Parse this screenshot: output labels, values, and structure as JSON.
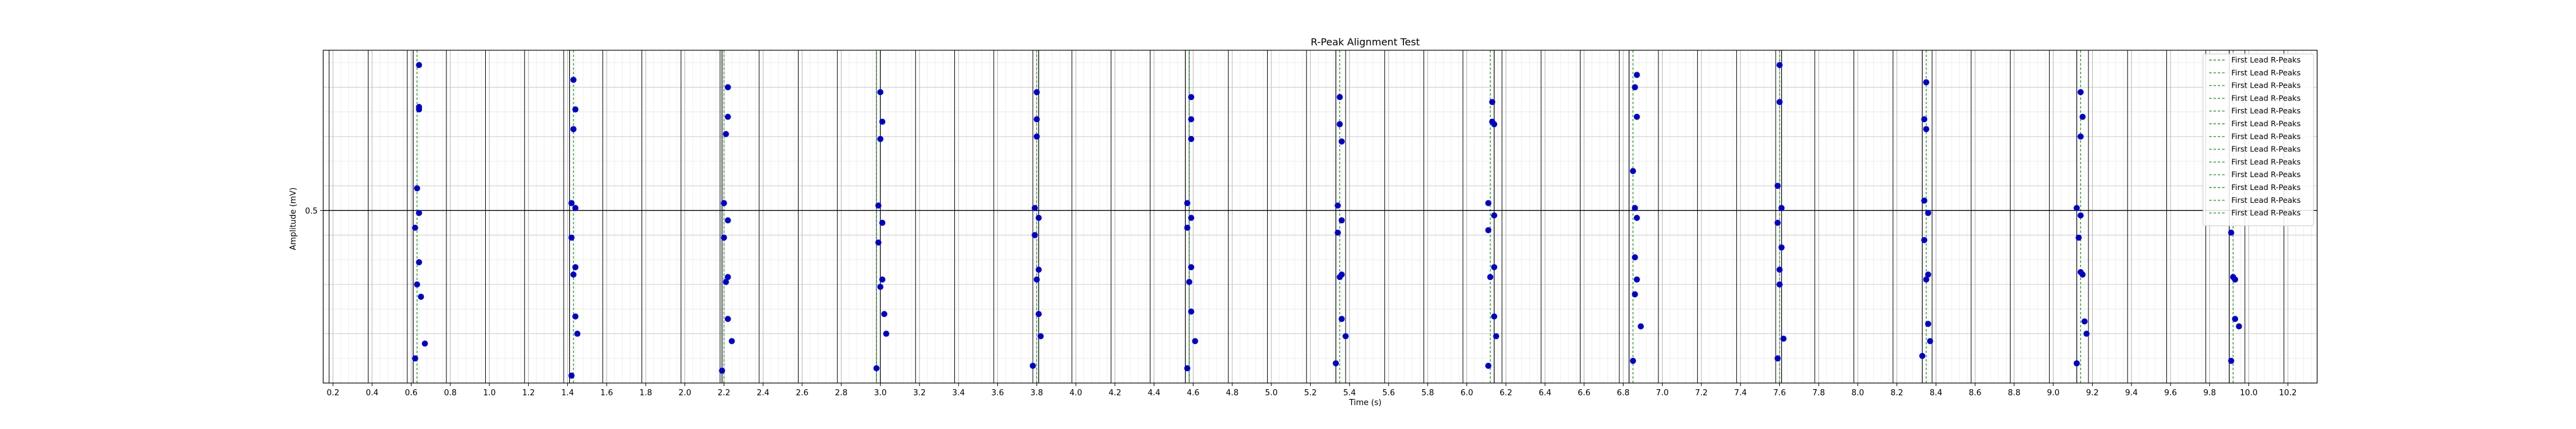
{
  "chart_data": {
    "type": "scatter",
    "title": "R-Peak Alignment Test",
    "xlabel": "Time (s)",
    "ylabel": "Amplitude (mV)",
    "xlim": [
      0.15,
      10.35
    ],
    "ylim": [
      -0.2,
      1.15
    ],
    "grid": true,
    "minor_grid": true,
    "legend_placement": "top-right",
    "x_ticks": [
      0.2,
      0.4,
      0.6,
      0.8,
      1.0,
      1.2,
      1.4,
      1.6,
      1.8,
      2.0,
      2.2,
      2.4,
      2.6,
      2.8,
      3.0,
      3.2,
      3.4,
      3.6,
      3.8,
      4.0,
      4.2,
      4.4,
      4.6,
      4.8,
      5.0,
      5.2,
      5.4,
      5.6,
      5.8,
      6.0,
      6.2,
      6.4,
      6.6,
      6.8,
      7.0,
      7.2,
      7.4,
      7.6,
      7.8,
      8.0,
      8.2,
      8.4,
      8.6,
      8.8,
      9.0,
      9.2,
      9.4,
      9.6,
      9.8,
      10.0,
      10.2
    ],
    "x_tick_labels": [
      "0.2",
      "0.4",
      "0.6",
      "0.8",
      "1.0",
      "1.2",
      "1.4",
      "1.6",
      "1.8",
      "2.0",
      "2.2",
      "2.4",
      "2.6",
      "2.8",
      "3.0",
      "3.2",
      "3.4",
      "3.6",
      "3.8",
      "4.0",
      "4.2",
      "4.4",
      "4.6",
      "4.8",
      "5.0",
      "5.2",
      "5.4",
      "5.6",
      "5.8",
      "6.0",
      "6.2",
      "6.4",
      "6.6",
      "6.8",
      "7.0",
      "7.2",
      "7.4",
      "7.6",
      "7.8",
      "8.0",
      "8.2",
      "8.4",
      "8.6",
      "8.8",
      "9.0",
      "9.2",
      "9.4",
      "9.6",
      "9.8",
      "10.0",
      "10.2"
    ],
    "y_ticks": [
      0.5
    ],
    "y_tick_labels": [
      "0.5"
    ],
    "major_vlines": [
      0.18,
      0.38,
      0.58,
      0.78,
      0.98,
      1.18,
      1.38,
      1.58,
      1.78,
      1.98,
      2.18,
      2.38,
      2.58,
      2.78,
      2.98,
      3.18,
      3.38,
      3.58,
      3.78,
      3.98,
      4.18,
      4.38,
      4.58,
      4.78,
      4.98,
      5.18,
      5.38,
      5.58,
      5.78,
      5.98,
      6.18,
      6.38,
      6.58,
      6.78,
      6.98,
      7.18,
      7.38,
      7.58,
      7.78,
      7.98,
      8.18,
      8.38,
      8.58,
      8.78,
      8.98,
      9.18,
      9.38,
      9.58,
      9.78,
      9.98,
      10.18
    ],
    "baseline_y": 0.5,
    "r_peak_lines": {
      "label": "First Lead R-Peaks",
      "green": [
        0.63,
        1.43,
        2.2,
        2.98,
        3.8,
        4.58,
        5.35,
        6.12,
        6.85,
        7.6,
        8.35,
        9.14,
        9.92
      ],
      "black": [
        0.61,
        1.41,
        2.19,
        3.0,
        3.81,
        4.56,
        5.33,
        6.14,
        6.83,
        7.61,
        8.33,
        9.12,
        9.9
      ]
    },
    "legend_entries": [
      "First Lead R-Peaks",
      "First Lead R-Peaks",
      "First Lead R-Peaks",
      "First Lead R-Peaks",
      "First Lead R-Peaks",
      "First Lead R-Peaks",
      "First Lead R-Peaks",
      "First Lead R-Peaks",
      "First Lead R-Peaks",
      "First Lead R-Peaks",
      "First Lead R-Peaks",
      "First Lead R-Peaks",
      "First Lead R-Peaks"
    ],
    "series": [
      {
        "color": "#0000cc",
        "points": [
          [
            0.64,
            1.09
          ],
          [
            0.64,
            0.92
          ],
          [
            0.64,
            0.91
          ],
          [
            0.63,
            0.59
          ],
          [
            0.64,
            0.49
          ],
          [
            0.62,
            0.43
          ],
          [
            0.64,
            0.29
          ],
          [
            0.63,
            0.2
          ],
          [
            0.65,
            0.15
          ],
          [
            0.67,
            -0.04
          ],
          [
            0.62,
            -0.1
          ],
          [
            1.43,
            1.03
          ],
          [
            1.44,
            0.91
          ],
          [
            1.43,
            0.83
          ],
          [
            1.42,
            0.53
          ],
          [
            1.44,
            0.51
          ],
          [
            1.42,
            0.39
          ],
          [
            1.44,
            0.27
          ],
          [
            1.43,
            0.24
          ],
          [
            1.44,
            0.07
          ],
          [
            1.45,
            0.0
          ],
          [
            1.42,
            -0.17
          ],
          [
            2.22,
            1.0
          ],
          [
            2.22,
            0.88
          ],
          [
            2.21,
            0.81
          ],
          [
            2.2,
            0.53
          ],
          [
            2.22,
            0.46
          ],
          [
            2.2,
            0.39
          ],
          [
            2.22,
            0.23
          ],
          [
            2.21,
            0.21
          ],
          [
            2.22,
            0.06
          ],
          [
            2.24,
            -0.03
          ],
          [
            2.19,
            -0.15
          ],
          [
            3.0,
            0.98
          ],
          [
            3.01,
            0.86
          ],
          [
            3.0,
            0.79
          ],
          [
            2.99,
            0.52
          ],
          [
            3.01,
            0.45
          ],
          [
            2.99,
            0.37
          ],
          [
            3.01,
            0.22
          ],
          [
            3.0,
            0.19
          ],
          [
            3.02,
            0.08
          ],
          [
            3.03,
            0.0
          ],
          [
            2.98,
            -0.14
          ],
          [
            3.8,
            0.98
          ],
          [
            3.8,
            0.87
          ],
          [
            3.8,
            0.8
          ],
          [
            3.79,
            0.51
          ],
          [
            3.81,
            0.47
          ],
          [
            3.79,
            0.4
          ],
          [
            3.81,
            0.26
          ],
          [
            3.8,
            0.22
          ],
          [
            3.81,
            0.08
          ],
          [
            3.82,
            -0.01
          ],
          [
            3.78,
            -0.13
          ],
          [
            4.59,
            0.96
          ],
          [
            4.59,
            0.87
          ],
          [
            4.59,
            0.79
          ],
          [
            4.57,
            0.53
          ],
          [
            4.59,
            0.47
          ],
          [
            4.57,
            0.43
          ],
          [
            4.59,
            0.27
          ],
          [
            4.58,
            0.21
          ],
          [
            4.59,
            0.09
          ],
          [
            4.61,
            -0.03
          ],
          [
            4.57,
            -0.14
          ],
          [
            5.35,
            0.96
          ],
          [
            5.35,
            0.85
          ],
          [
            5.36,
            0.78
          ],
          [
            5.34,
            0.52
          ],
          [
            5.36,
            0.46
          ],
          [
            5.34,
            0.41
          ],
          [
            5.36,
            0.24
          ],
          [
            5.35,
            0.23
          ],
          [
            5.36,
            0.06
          ],
          [
            5.38,
            -0.01
          ],
          [
            5.33,
            -0.12
          ],
          [
            6.13,
            0.94
          ],
          [
            6.13,
            0.86
          ],
          [
            6.14,
            0.85
          ],
          [
            6.11,
            0.53
          ],
          [
            6.14,
            0.48
          ],
          [
            6.11,
            0.42
          ],
          [
            6.14,
            0.27
          ],
          [
            6.12,
            0.23
          ],
          [
            6.14,
            0.07
          ],
          [
            6.15,
            -0.01
          ],
          [
            6.11,
            -0.13
          ],
          [
            6.87,
            1.05
          ],
          [
            6.86,
            1.0
          ],
          [
            6.87,
            0.88
          ],
          [
            6.85,
            0.66
          ],
          [
            6.86,
            0.51
          ],
          [
            6.87,
            0.47
          ],
          [
            6.86,
            0.31
          ],
          [
            6.87,
            0.22
          ],
          [
            6.86,
            0.16
          ],
          [
            6.89,
            0.03
          ],
          [
            6.85,
            -0.11
          ],
          [
            7.6,
            1.09
          ],
          [
            7.6,
            0.94
          ],
          [
            7.59,
            0.6
          ],
          [
            7.61,
            0.51
          ],
          [
            7.59,
            0.45
          ],
          [
            7.61,
            0.35
          ],
          [
            7.6,
            0.26
          ],
          [
            7.6,
            0.2
          ],
          [
            7.62,
            -0.02
          ],
          [
            7.59,
            -0.1
          ],
          [
            8.35,
            1.02
          ],
          [
            8.34,
            0.87
          ],
          [
            8.35,
            0.83
          ],
          [
            8.34,
            0.54
          ],
          [
            8.36,
            0.49
          ],
          [
            8.34,
            0.38
          ],
          [
            8.36,
            0.24
          ],
          [
            8.35,
            0.22
          ],
          [
            8.36,
            0.04
          ],
          [
            8.37,
            -0.03
          ],
          [
            8.33,
            -0.09
          ],
          [
            9.14,
            0.98
          ],
          [
            9.15,
            0.88
          ],
          [
            9.14,
            0.8
          ],
          [
            9.12,
            0.51
          ],
          [
            9.14,
            0.48
          ],
          [
            9.13,
            0.39
          ],
          [
            9.14,
            0.25
          ],
          [
            9.15,
            0.24
          ],
          [
            9.16,
            0.05
          ],
          [
            9.17,
            0.0
          ],
          [
            9.12,
            -0.12
          ],
          [
            9.91,
            0.41
          ],
          [
            9.92,
            0.23
          ],
          [
            9.93,
            0.22
          ],
          [
            9.93,
            0.06
          ],
          [
            9.95,
            0.03
          ],
          [
            9.91,
            -0.11
          ]
        ]
      }
    ]
  }
}
